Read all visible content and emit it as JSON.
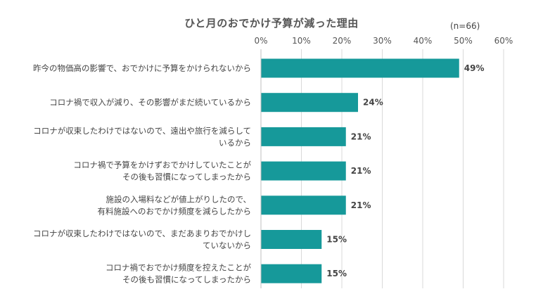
{
  "chart_data": {
    "type": "bar",
    "orientation": "horizontal",
    "title": "ひと月のおでかけ予算が減った理由",
    "note": "(n=66)",
    "categories": [
      [
        "昨今の物価高の影響で、おでかけに予算をかけられないから"
      ],
      [
        "コロナ禍で収入が減り、その影響がまだ続いているから"
      ],
      [
        "コロナが収束したわけではないので、遠出や旅行を減らして",
        "いるから"
      ],
      [
        "コロナ禍で予算をかけずおでかけしていたことが",
        "その後も習慣になってしまったから"
      ],
      [
        "施設の入場料などが値上がりしたので、",
        "有料施設へのおでかけ頻度を減らしたから"
      ],
      [
        "コロナが収束したわけではないので、まだあまりおでかけし",
        "ていないから"
      ],
      [
        "コロナ禍でおでかけ頻度を控えたことが",
        "その後も習慣になってしまったから"
      ]
    ],
    "values": [
      49,
      24,
      21,
      21,
      21,
      15,
      15
    ],
    "value_labels": [
      "49%",
      "24%",
      "21%",
      "21%",
      "21%",
      "15%",
      "15%"
    ],
    "xticks": [
      "0%",
      "10%",
      "20%",
      "30%",
      "40%",
      "50%",
      "60%"
    ],
    "xlim": [
      0,
      60
    ],
    "bar_color": "#16999a",
    "grid": true
  }
}
